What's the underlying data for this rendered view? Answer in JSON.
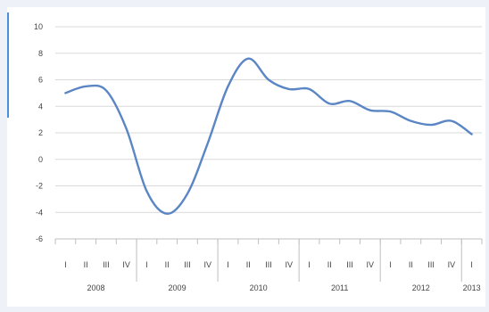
{
  "chart_data": {
    "type": "line",
    "title": "",
    "xlabel": "",
    "ylabel": "",
    "ylim": [
      -6,
      10
    ],
    "yticks": [
      "10",
      "8",
      "6",
      "4",
      "2",
      "0",
      "-2",
      "-4",
      "-6"
    ],
    "grid": true,
    "legend": "none",
    "quarters": [
      "I",
      "II",
      "III",
      "IV",
      "I",
      "II",
      "III",
      "IV",
      "I",
      "II",
      "III",
      "IV",
      "I",
      "II",
      "III",
      "IV",
      "I",
      "II",
      "III",
      "IV",
      "I"
    ],
    "years": [
      "2008",
      "2009",
      "2010",
      "2011",
      "2012",
      "2013"
    ],
    "series": [
      {
        "color": "#5b86c5",
        "x": [
          "2008 I",
          "2008 II",
          "2008 III",
          "2008 IV",
          "2009 I",
          "2009 II",
          "2009 III",
          "2009 IV",
          "2010 I",
          "2010 II",
          "2010 III",
          "2010 IV",
          "2011 I",
          "2011 II",
          "2011 III",
          "2011 IV",
          "2012 I",
          "2012 II",
          "2012 III",
          "2012 IV",
          "2013 I"
        ],
        "values": [
          5.0,
          5.5,
          5.2,
          2.3,
          -2.4,
          -4.1,
          -2.6,
          1.2,
          5.5,
          7.6,
          6.0,
          5.3,
          5.3,
          4.2,
          4.4,
          3.7,
          3.6,
          2.9,
          2.6,
          2.9,
          1.9
        ]
      }
    ]
  }
}
